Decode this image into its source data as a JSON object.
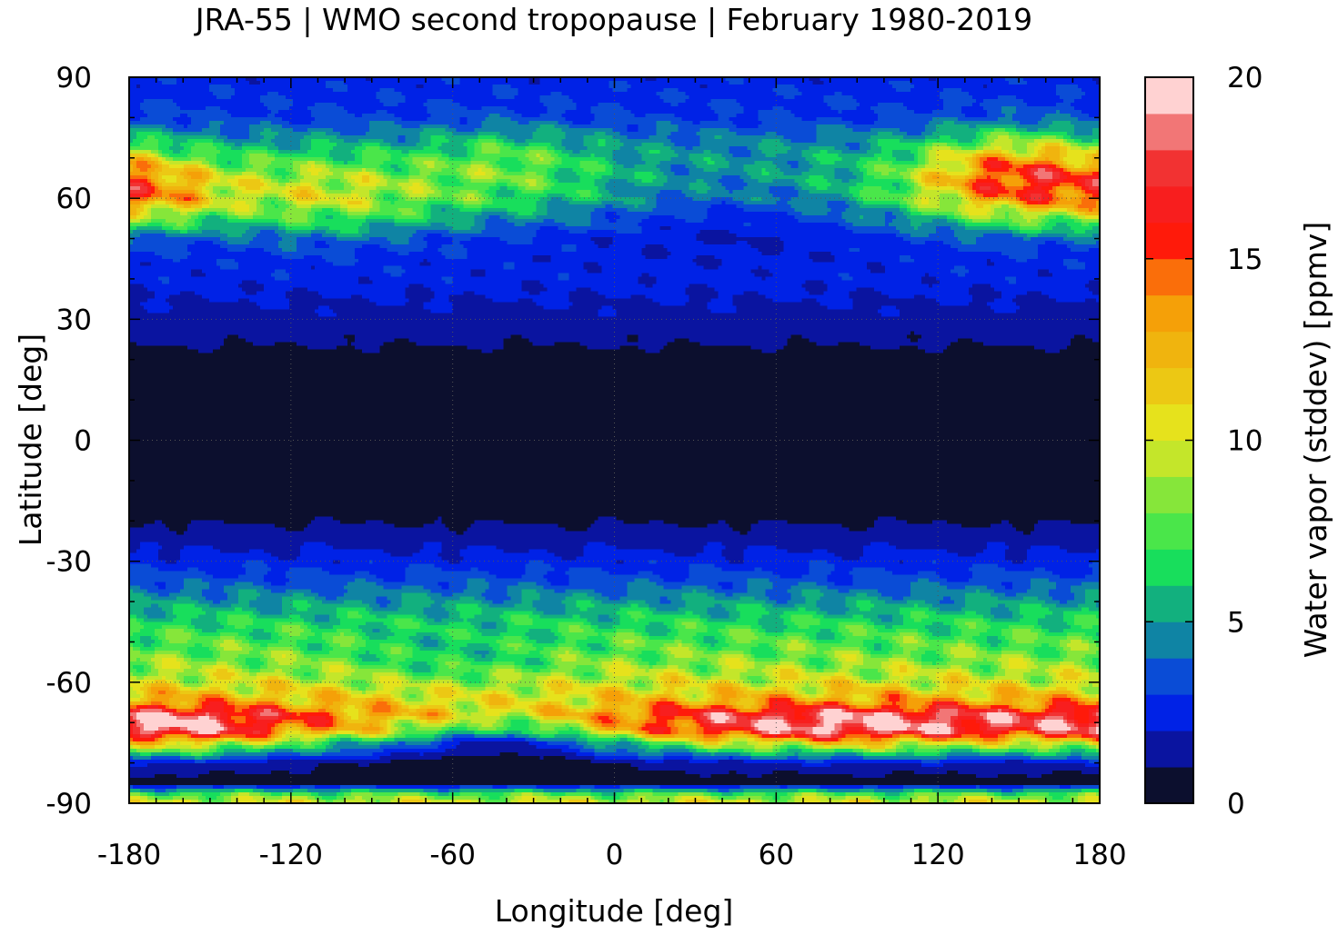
{
  "chart_data": {
    "type": "heatmap",
    "title": "JRA-55 | WMO second tropopause | February 1980-2019",
    "xlabel": "Longitude [deg]",
    "ylabel": "Latitude [deg]",
    "xlim": [
      -180,
      180
    ],
    "ylim": [
      -90,
      90
    ],
    "x_ticks": [
      -180,
      -120,
      -60,
      0,
      60,
      120,
      180
    ],
    "y_ticks": [
      90,
      60,
      30,
      0,
      -30,
      -60,
      -90
    ],
    "x_tick_labels": [
      "-180",
      "-120",
      "-60",
      "0",
      "60",
      "120",
      "180"
    ],
    "y_tick_labels": [
      "90",
      "60",
      "30",
      "0",
      "-30",
      "-60",
      "-90"
    ],
    "grid": true,
    "colorbar": {
      "label": "Water vapor (stddev) [ppmv]",
      "range": [
        0,
        20
      ],
      "ticks": [
        0,
        5,
        10,
        15,
        20
      ],
      "tick_labels": [
        "0",
        "5",
        "10",
        "15",
        "20"
      ],
      "levels": [
        {
          "from": 0,
          "to": 1,
          "color": "#0c0f2e"
        },
        {
          "from": 1,
          "to": 2,
          "color": "#0a14a0"
        },
        {
          "from": 2,
          "to": 3,
          "color": "#0022e6"
        },
        {
          "from": 3,
          "to": 4,
          "color": "#0a4cd6"
        },
        {
          "from": 4,
          "to": 5,
          "color": "#0f84a4"
        },
        {
          "from": 5,
          "to": 6,
          "color": "#12b07e"
        },
        {
          "from": 6,
          "to": 7,
          "color": "#18de5c"
        },
        {
          "from": 7,
          "to": 8,
          "color": "#4ae64a"
        },
        {
          "from": 8,
          "to": 9,
          "color": "#86e63a"
        },
        {
          "from": 9,
          "to": 10,
          "color": "#c4e62a"
        },
        {
          "from": 10,
          "to": 11,
          "color": "#e6e21c"
        },
        {
          "from": 11,
          "to": 12,
          "color": "#ecc814"
        },
        {
          "from": 12,
          "to": 13,
          "color": "#f0b40e"
        },
        {
          "from": 13,
          "to": 14,
          "color": "#f5a008"
        },
        {
          "from": 14,
          "to": 15,
          "color": "#fa6e0a"
        },
        {
          "from": 15,
          "to": 16,
          "color": "#ff1a0a"
        },
        {
          "from": 16,
          "to": 17,
          "color": "#f81e1e"
        },
        {
          "from": 17,
          "to": 18,
          "color": "#f23232"
        },
        {
          "from": 18,
          "to": 19,
          "color": "#f27676"
        },
        {
          "from": 19,
          "to": 20,
          "color": "#ffd2d2"
        }
      ]
    },
    "latitude_profile": {
      "lat": [
        90,
        80,
        75,
        70,
        65,
        60,
        55,
        50,
        45,
        40,
        35,
        30,
        25,
        20,
        15,
        10,
        0,
        -10,
        -15,
        -20,
        -25,
        -30,
        -35,
        -40,
        -45,
        -50,
        -55,
        -60,
        -65,
        -68,
        -72,
        -75,
        -80,
        -85,
        -88,
        -90
      ],
      "value": [
        2.5,
        3,
        4.5,
        6,
        7,
        7,
        5,
        3,
        2.5,
        2.5,
        2,
        1.6,
        1.2,
        0.6,
        0.3,
        0.3,
        0.3,
        0.3,
        0.5,
        0.9,
        1.6,
        2.5,
        3.5,
        5,
        6.5,
        7.5,
        8.5,
        10,
        12,
        14,
        12,
        6,
        1,
        0.6,
        8,
        10
      ]
    },
    "longitude_anomalies": [
      {
        "lat": 65,
        "lon": 150,
        "amp": 9,
        "rlat": 10,
        "rlon": 35
      },
      {
        "lat": 62,
        "lon": -170,
        "amp": 5,
        "rlat": 8,
        "rlon": 25
      },
      {
        "lat": 60,
        "lon": -110,
        "amp": 3,
        "rlat": 10,
        "rlon": 40
      },
      {
        "lat": 70,
        "lon": -40,
        "amp": 2,
        "rlat": 8,
        "rlon": 30
      },
      {
        "lat": -72,
        "lon": 90,
        "amp": 7,
        "rlat": 6,
        "rlon": 80
      },
      {
        "lat": -72,
        "lon": -160,
        "amp": 6,
        "rlat": 6,
        "rlon": 40
      },
      {
        "lat": -72,
        "lon": -40,
        "amp": -6,
        "rlat": 6,
        "rlon": 40
      },
      {
        "lat": -55,
        "lon": -60,
        "amp": -2,
        "rlat": 8,
        "rlon": 40
      },
      {
        "lat": 60,
        "lon": 40,
        "amp": -3,
        "rlat": 10,
        "rlon": 60
      }
    ]
  }
}
